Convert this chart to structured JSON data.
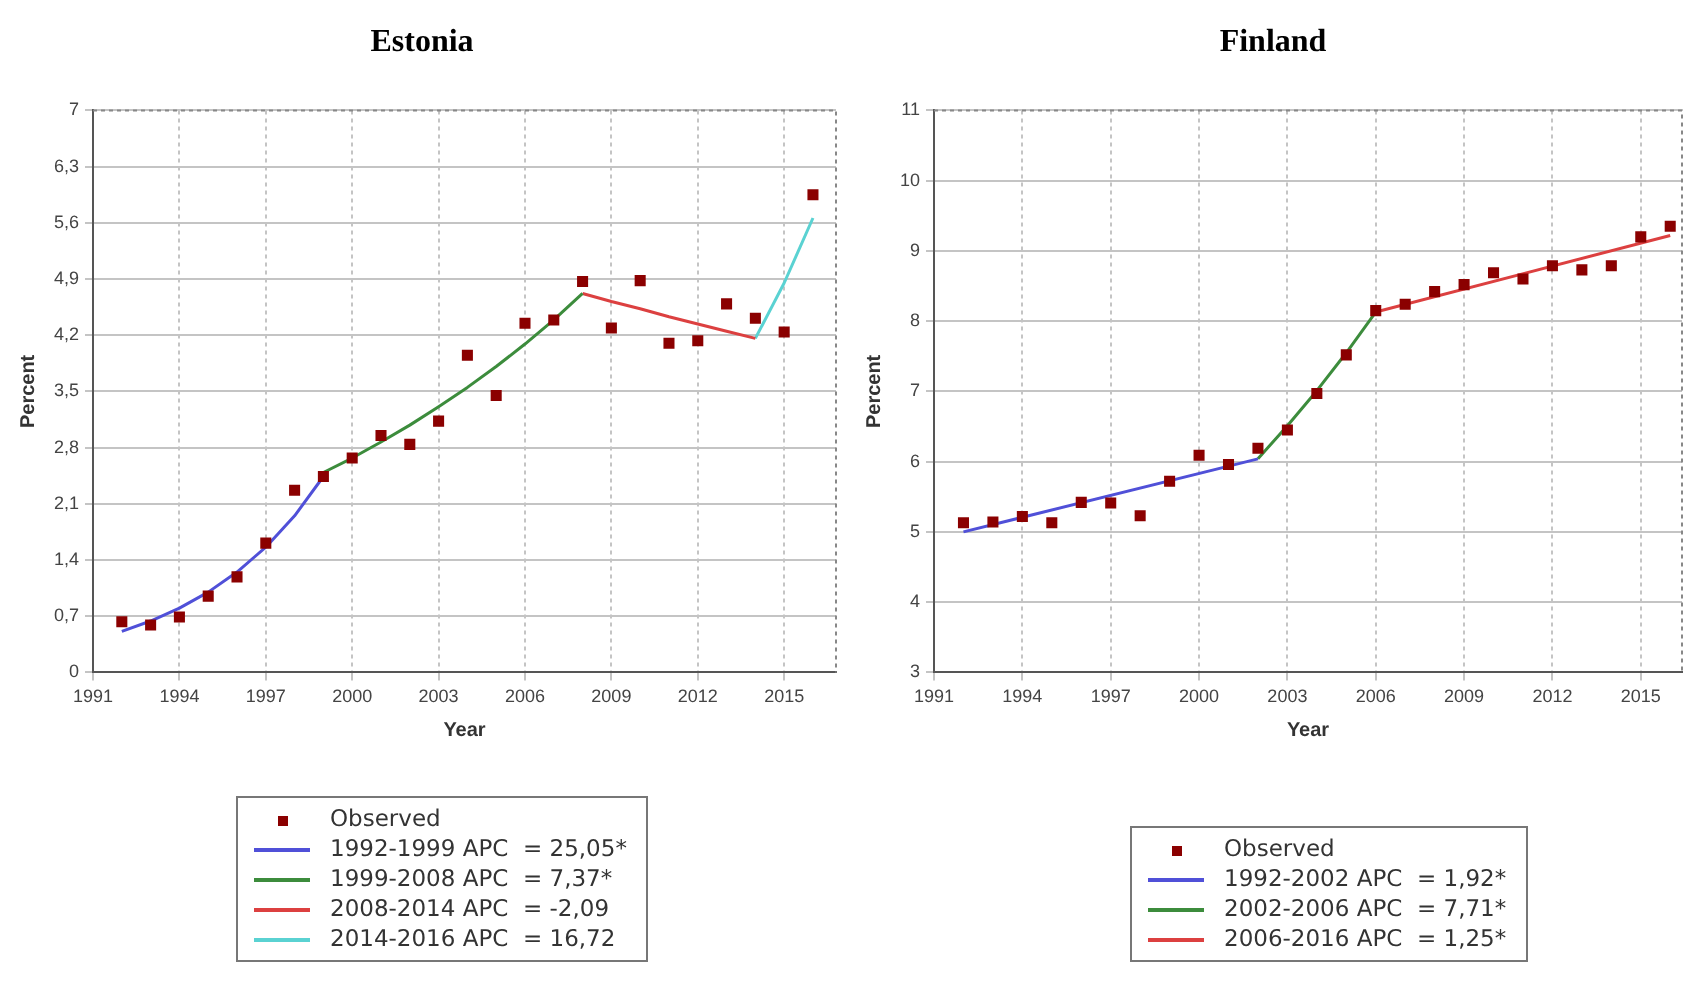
{
  "chart_data": [
    {
      "type": "line",
      "title": "Estonia",
      "xlabel": "Year",
      "ylabel": "Percent",
      "xlim": [
        1991,
        2016.8
      ],
      "xticks": [
        1991,
        1994,
        1997,
        2000,
        2003,
        2006,
        2009,
        2012,
        2015
      ],
      "ylim": [
        0,
        7
      ],
      "yticks": [
        0,
        {
          "value": 0.7,
          "label": "0,7"
        },
        {
          "value": 1.4,
          "label": "1,4"
        },
        {
          "value": 2.1,
          "label": "2,1"
        },
        {
          "value": 2.8,
          "label": "2,8"
        },
        {
          "value": 3.5,
          "label": "3,5"
        },
        {
          "value": 4.2,
          "label": "4,2"
        },
        {
          "value": 4.9,
          "label": "4,9"
        },
        {
          "value": 5.6,
          "label": "5,6"
        },
        {
          "value": 6.3,
          "label": "6,3"
        },
        7
      ],
      "grid": true,
      "legend": "bottom",
      "series": [
        {
          "name": "Observed",
          "type": "scatter",
          "marker": "square",
          "color": "#8b0000",
          "x": [
            1992,
            1993,
            1994,
            1995,
            1996,
            1997,
            1998,
            1999,
            2000,
            2001,
            2002,
            2003,
            2004,
            2005,
            2006,
            2007,
            2008,
            2009,
            2010,
            2011,
            2012,
            2013,
            2014,
            2015,
            2016
          ],
          "values": [
            0.63,
            0.59,
            0.69,
            0.95,
            1.19,
            1.61,
            2.27,
            2.44,
            2.67,
            2.95,
            2.84,
            3.13,
            3.95,
            3.45,
            4.35,
            4.39,
            4.87,
            4.29,
            4.88,
            4.1,
            4.13,
            4.59,
            4.41,
            4.24,
            5.95
          ]
        },
        {
          "name": "1992-1999 APC  = 25,05*",
          "type": "line",
          "marker": "none",
          "color": "#5050d8",
          "x": [
            1992,
            1993,
            1994,
            1995,
            1996,
            1997,
            1998,
            1999
          ],
          "values": [
            0.51,
            0.64,
            0.8,
            1.0,
            1.25,
            1.56,
            1.95,
            2.44
          ]
        },
        {
          "name": "1999-2008 APC  = 7,37*",
          "type": "line",
          "marker": "none",
          "color": "#3c8c3c",
          "x": [
            1999,
            2000,
            2001,
            2002,
            2003,
            2004,
            2005,
            2006,
            2007,
            2008
          ],
          "values": [
            2.49,
            2.67,
            2.87,
            3.08,
            3.31,
            3.55,
            3.81,
            4.09,
            4.39,
            4.72
          ]
        },
        {
          "name": "2008-2014 APC  = -2,09",
          "type": "line",
          "marker": "none",
          "color": "#dc4040",
          "x": [
            2008,
            2009,
            2010,
            2011,
            2012,
            2013,
            2014
          ],
          "values": [
            4.72,
            4.62,
            4.53,
            4.43,
            4.34,
            4.25,
            4.16
          ]
        },
        {
          "name": "2014-2016 APC  = 16,72",
          "type": "line",
          "marker": "none",
          "color": "#5ad2d2",
          "x": [
            2014,
            2015,
            2016
          ],
          "values": [
            4.16,
            4.85,
            5.66
          ]
        }
      ]
    },
    {
      "type": "line",
      "title": "Finland",
      "xlabel": "Year",
      "ylabel": "Percent",
      "xlim": [
        1991,
        2016.4
      ],
      "xticks": [
        1991,
        1994,
        1997,
        2000,
        2003,
        2006,
        2009,
        2012,
        2015
      ],
      "ylim": [
        3,
        11
      ],
      "yticks": [
        3,
        4,
        5,
        6,
        7,
        8,
        9,
        10,
        11
      ],
      "grid": true,
      "legend": "bottom",
      "series": [
        {
          "name": "Observed",
          "type": "scatter",
          "marker": "square",
          "color": "#8b0000",
          "x": [
            1992,
            1993,
            1994,
            1995,
            1996,
            1997,
            1998,
            1999,
            2000,
            2001,
            2002,
            2003,
            2004,
            2005,
            2006,
            2007,
            2008,
            2009,
            2010,
            2011,
            2012,
            2013,
            2014,
            2015,
            2016
          ],
          "values": [
            5.13,
            5.14,
            5.22,
            5.13,
            5.42,
            5.41,
            5.23,
            5.72,
            6.09,
            5.96,
            6.19,
            6.45,
            6.97,
            7.52,
            8.15,
            8.24,
            8.42,
            8.52,
            8.69,
            8.6,
            8.79,
            8.73,
            8.79,
            9.2,
            9.35
          ]
        },
        {
          "name": "1992-2002 APC  = 1,92*",
          "type": "line",
          "marker": "none",
          "color": "#5050d8",
          "x": [
            1992,
            2002
          ],
          "values": [
            5.0,
            6.04
          ]
        },
        {
          "name": "2002-2006 APC  = 7,71*",
          "type": "line",
          "marker": "none",
          "color": "#3c8c3c",
          "x": [
            2002,
            2003,
            2004,
            2005,
            2006
          ],
          "values": [
            6.04,
            6.51,
            7.01,
            7.55,
            8.13
          ]
        },
        {
          "name": "2006-2016 APC  = 1,25*",
          "type": "line",
          "marker": "none",
          "color": "#dc4040",
          "x": [
            2006,
            2016
          ],
          "values": [
            8.13,
            9.22
          ]
        }
      ]
    }
  ]
}
